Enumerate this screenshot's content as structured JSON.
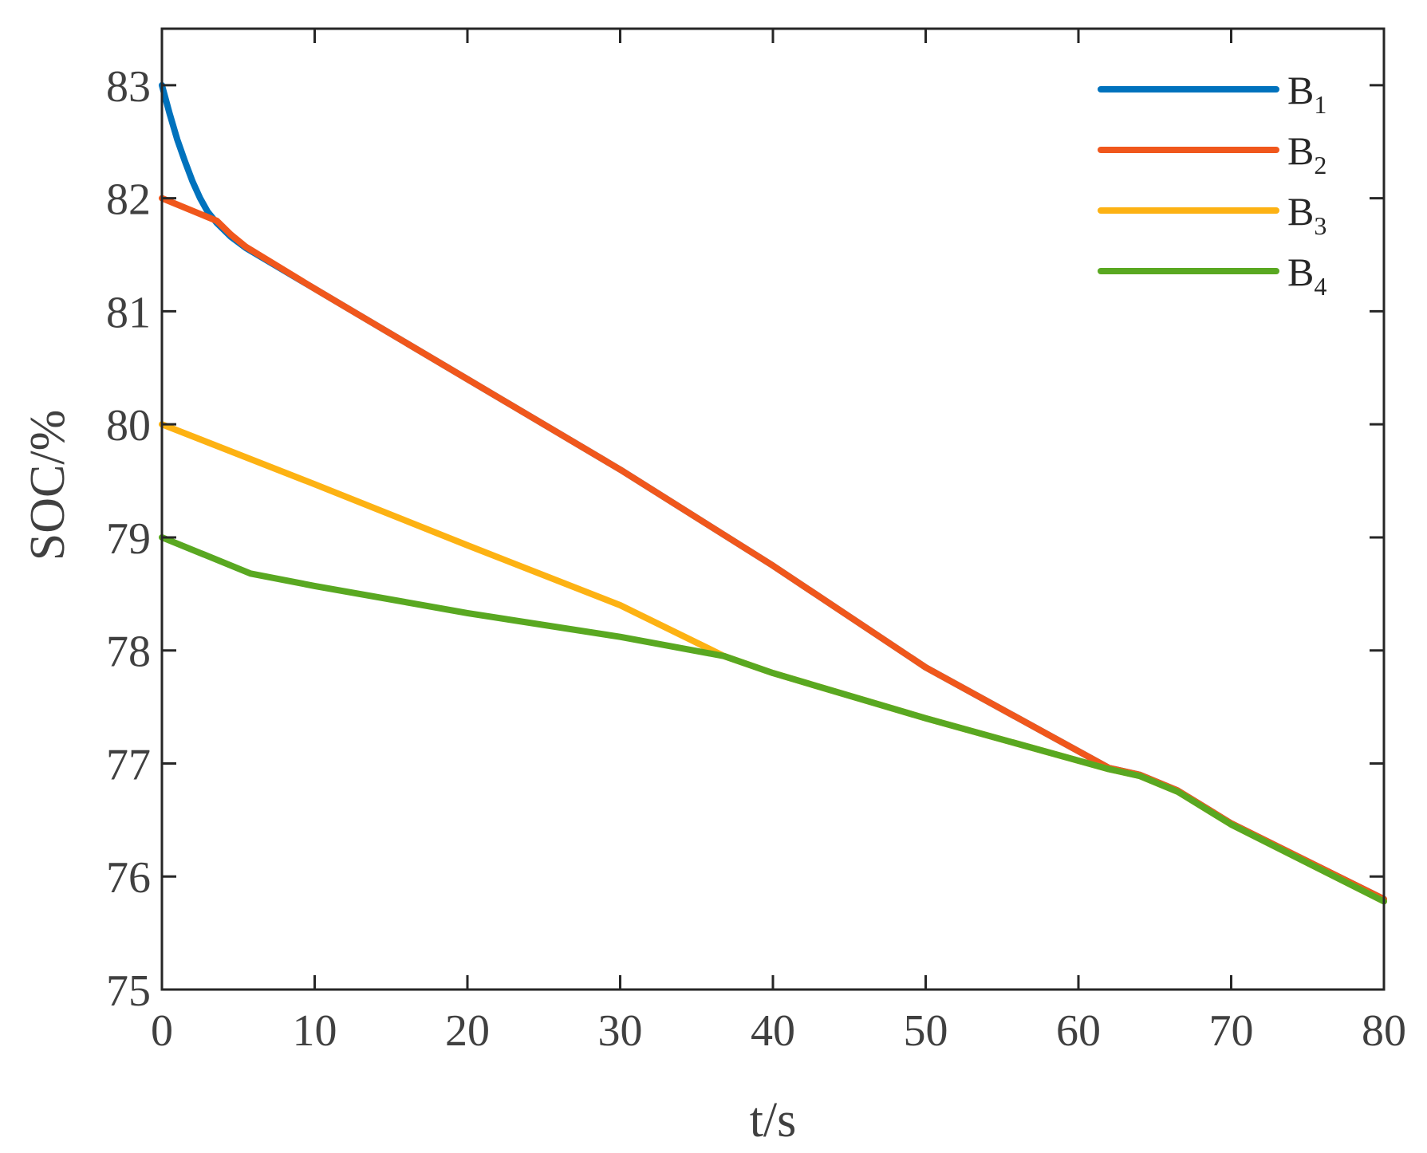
{
  "chart_data": {
    "type": "line",
    "xlabel": "t/s",
    "ylabel": "SOC/%",
    "xlim": [
      0,
      80
    ],
    "ylim": [
      75,
      83.5
    ],
    "xticks": [
      "0",
      "10",
      "20",
      "30",
      "40",
      "50",
      "60",
      "70",
      "80"
    ],
    "yticks": [
      "75",
      "76",
      "77",
      "78",
      "79",
      "80",
      "81",
      "82",
      "83"
    ],
    "grid": false,
    "legend_position": "top-right",
    "series": [
      {
        "name": "B",
        "subscript": "1",
        "color": "#0072BD",
        "points": [
          [
            0,
            83.0
          ],
          [
            0.5,
            82.75
          ],
          [
            1.0,
            82.52
          ],
          [
            1.5,
            82.33
          ],
          [
            2.0,
            82.15
          ],
          [
            2.5,
            82.0
          ],
          [
            3.0,
            81.88
          ],
          [
            3.6,
            81.78
          ],
          [
            4.5,
            81.66
          ],
          [
            5.5,
            81.56
          ],
          [
            10,
            81.2
          ],
          [
            20,
            80.4
          ],
          [
            30,
            79.6
          ],
          [
            40,
            78.75
          ],
          [
            50,
            77.85
          ],
          [
            62,
            76.96
          ],
          [
            64,
            76.9
          ],
          [
            66.5,
            76.76
          ],
          [
            70,
            76.47
          ],
          [
            80,
            75.8
          ]
        ]
      },
      {
        "name": "B",
        "subscript": "2",
        "color": "#F0571C",
        "points": [
          [
            0,
            82.0
          ],
          [
            3.6,
            81.8
          ],
          [
            4.5,
            81.68
          ],
          [
            5.5,
            81.57
          ],
          [
            10,
            81.2
          ],
          [
            20,
            80.4
          ],
          [
            30,
            79.6
          ],
          [
            40,
            78.75
          ],
          [
            50,
            77.85
          ],
          [
            62,
            76.96
          ],
          [
            64,
            76.9
          ],
          [
            66.5,
            76.76
          ],
          [
            70,
            76.47
          ],
          [
            80,
            75.8
          ]
        ]
      },
      {
        "name": "B",
        "subscript": "3",
        "color": "#FDB213",
        "points": [
          [
            0,
            80.0
          ],
          [
            10,
            79.47
          ],
          [
            20,
            78.93
          ],
          [
            30,
            78.4
          ],
          [
            36.8,
            77.95
          ],
          [
            40,
            77.8
          ],
          [
            50,
            77.4
          ],
          [
            62,
            76.95
          ],
          [
            64,
            76.89
          ],
          [
            66.5,
            76.75
          ],
          [
            70,
            76.46
          ],
          [
            80,
            75.78
          ]
        ]
      },
      {
        "name": "B",
        "subscript": "4",
        "color": "#59A821",
        "points": [
          [
            0,
            79.0
          ],
          [
            5.8,
            78.68
          ],
          [
            10,
            78.57
          ],
          [
            20,
            78.33
          ],
          [
            30,
            78.12
          ],
          [
            36.8,
            77.95
          ],
          [
            40,
            77.8
          ],
          [
            50,
            77.4
          ],
          [
            62,
            76.95
          ],
          [
            64,
            76.89
          ],
          [
            66.5,
            76.75
          ],
          [
            70,
            76.46
          ],
          [
            80,
            75.78
          ]
        ]
      }
    ]
  }
}
